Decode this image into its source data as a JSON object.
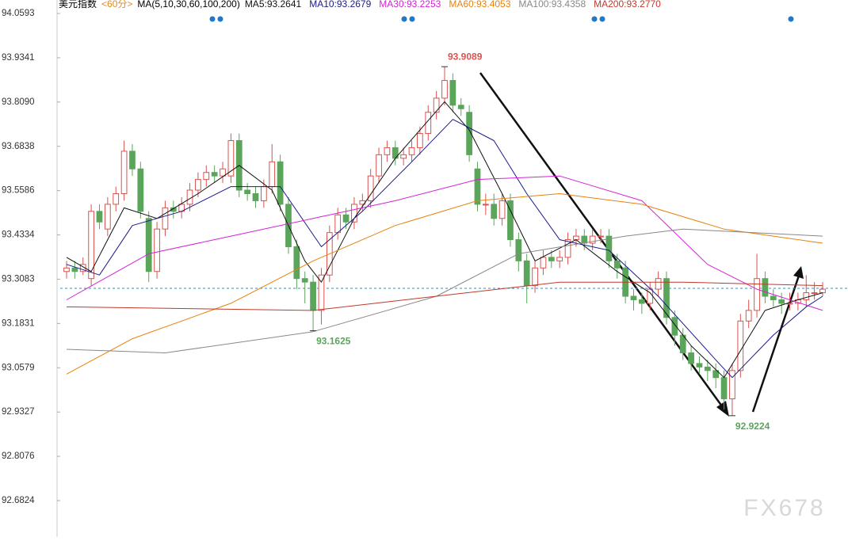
{
  "chart_data": {
    "type": "candlestick",
    "header": [
      "美元指数",
      "<60分>",
      "MA(5,10,30,60,100,200)"
    ],
    "header_colors": [
      "#000000",
      "#e08a1e",
      "#000000"
    ],
    "ylim": [
      92.5794,
      94.0974
    ],
    "yticks": [
      94.0593,
      93.9341,
      {
        "value": 93.809,
        "label": "93.8090"
      },
      93.6838,
      93.5586,
      93.4334,
      93.3083,
      93.1831,
      93.0579,
      92.9327,
      92.8076,
      92.6824
    ],
    "up_color": "#d9534f",
    "down_color": "#5ba55b",
    "open": [
      93.33,
      93.34,
      93.33,
      93.31,
      93.5,
      93.45,
      93.52,
      93.55,
      93.67,
      93.62,
      93.48,
      93.33,
      93.45,
      93.51,
      93.5,
      93.52,
      93.56,
      93.59,
      93.61,
      93.6,
      93.6,
      93.7,
      93.56,
      93.55,
      93.53,
      93.57,
      93.64,
      93.52,
      93.4,
      93.31,
      93.3,
      93.22,
      93.32,
      93.44,
      93.49,
      93.47,
      93.52,
      93.53,
      93.6,
      93.66,
      93.68,
      93.65,
      93.66,
      93.68,
      93.72,
      93.78,
      93.82,
      93.87,
      93.8,
      93.78,
      93.62,
      93.52,
      93.52,
      93.48,
      93.53,
      93.42,
      93.36,
      93.29,
      93.34,
      93.37,
      93.36,
      93.37,
      93.42,
      93.43,
      93.41,
      93.43,
      93.43,
      93.36,
      93.34,
      93.26,
      93.25,
      93.24,
      93.28,
      93.31,
      93.2,
      93.15,
      93.1,
      93.07,
      93.06,
      93.05,
      93.03,
      92.97,
      93.05,
      93.19,
      93.22,
      93.31,
      93.26,
      93.25,
      93.24,
      93.24,
      93.25,
      93.27,
      93.27
    ],
    "high": [
      93.36,
      93.36,
      93.37,
      93.52,
      93.52,
      93.54,
      93.57,
      93.7,
      93.69,
      93.64,
      93.5,
      93.47,
      93.53,
      93.53,
      93.54,
      93.58,
      93.61,
      93.63,
      93.63,
      93.64,
      93.72,
      93.72,
      93.58,
      93.57,
      93.59,
      93.69,
      93.66,
      93.54,
      93.42,
      93.33,
      93.32,
      93.34,
      93.46,
      93.51,
      93.51,
      93.54,
      93.55,
      93.62,
      93.68,
      93.7,
      93.7,
      93.68,
      93.7,
      93.74,
      93.8,
      93.84,
      93.9089,
      93.89,
      93.82,
      93.8,
      93.64,
      93.55,
      93.55,
      93.55,
      93.55,
      93.44,
      93.38,
      93.36,
      93.39,
      93.39,
      93.39,
      93.44,
      93.45,
      93.45,
      93.45,
      93.45,
      93.45,
      93.38,
      93.36,
      93.28,
      93.27,
      93.3,
      93.33,
      93.33,
      93.22,
      93.17,
      93.12,
      93.09,
      93.08,
      93.07,
      93.05,
      93.07,
      93.21,
      93.25,
      93.38,
      93.33,
      93.28,
      93.27,
      93.27,
      93.27,
      93.32,
      93.3,
      93.3
    ],
    "low": [
      93.31,
      93.31,
      93.32,
      93.29,
      93.45,
      93.43,
      93.5,
      93.53,
      93.6,
      93.48,
      93.3,
      93.31,
      93.43,
      93.48,
      93.48,
      93.5,
      93.54,
      93.57,
      93.58,
      93.58,
      93.58,
      93.54,
      93.53,
      93.51,
      93.51,
      93.55,
      93.5,
      93.38,
      93.28,
      93.24,
      93.1625,
      93.18,
      93.3,
      93.42,
      93.45,
      93.45,
      93.5,
      93.51,
      93.58,
      93.64,
      93.63,
      93.63,
      93.64,
      93.66,
      93.7,
      93.76,
      93.8,
      93.78,
      93.77,
      93.64,
      93.5,
      93.49,
      93.46,
      93.46,
      93.4,
      93.33,
      93.24,
      93.27,
      93.32,
      93.34,
      93.34,
      93.35,
      93.4,
      93.39,
      93.39,
      93.41,
      93.34,
      93.31,
      93.24,
      93.22,
      93.21,
      93.22,
      93.26,
      93.18,
      93.12,
      93.08,
      93.05,
      93.04,
      93.02,
      93.0,
      92.94,
      92.9224,
      93.03,
      93.17,
      93.2,
      93.24,
      93.23,
      93.21,
      93.22,
      93.22,
      93.23,
      93.25,
      93.26
    ],
    "close": [
      93.34,
      93.33,
      93.35,
      93.5,
      93.47,
      93.52,
      93.55,
      93.67,
      93.62,
      93.5,
      93.33,
      93.45,
      93.51,
      93.5,
      93.52,
      93.56,
      93.59,
      93.61,
      93.6,
      93.62,
      93.7,
      93.56,
      93.55,
      93.53,
      93.57,
      93.64,
      93.52,
      93.4,
      93.31,
      93.3,
      93.22,
      93.32,
      93.44,
      93.49,
      93.47,
      93.52,
      93.53,
      93.6,
      93.66,
      93.68,
      93.65,
      93.66,
      93.68,
      93.72,
      93.78,
      93.82,
      93.87,
      93.8,
      93.79,
      93.66,
      93.52,
      93.52,
      93.48,
      93.53,
      93.42,
      93.36,
      93.29,
      93.34,
      93.37,
      93.36,
      93.37,
      93.42,
      93.43,
      93.41,
      93.43,
      93.43,
      93.36,
      93.34,
      93.26,
      93.25,
      93.24,
      93.28,
      93.31,
      93.2,
      93.15,
      93.1,
      93.07,
      93.06,
      93.05,
      93.03,
      92.97,
      93.05,
      93.19,
      93.22,
      93.31,
      93.26,
      93.25,
      93.24,
      93.24,
      93.25,
      93.27,
      93.27,
      93.28
    ],
    "series": [
      {
        "name": "MA5:93.2641",
        "color": "#111111",
        "x": [
          0,
          3,
          7,
          11,
          16,
          21,
          25,
          29,
          31,
          35,
          40,
          46,
          49,
          53,
          57,
          62,
          67,
          71,
          76,
          80,
          85,
          89,
          92
        ],
        "values": [
          93.37,
          93.33,
          93.51,
          93.48,
          93.55,
          93.63,
          93.56,
          93.36,
          93.3,
          93.48,
          93.65,
          93.81,
          93.73,
          93.55,
          93.36,
          93.42,
          93.33,
          93.27,
          93.12,
          93.03,
          93.22,
          93.25,
          93.27
        ]
      },
      {
        "name": "MA10:93.2679",
        "color": "#1a1a8c",
        "x": [
          0,
          4,
          8,
          14,
          20,
          26,
          31,
          36,
          42,
          47,
          52,
          56,
          60,
          66,
          72,
          79,
          81,
          86,
          90,
          92
        ],
        "values": [
          93.35,
          93.32,
          93.46,
          93.5,
          93.57,
          93.57,
          93.4,
          93.5,
          93.64,
          93.76,
          93.7,
          93.55,
          93.42,
          93.39,
          93.26,
          93.08,
          93.03,
          93.15,
          93.23,
          93.26
        ]
      },
      {
        "name": "MA30:93.2253",
        "color": "#d422d4",
        "x": [
          0,
          10,
          20,
          30,
          40,
          50,
          60,
          70,
          78,
          84,
          92
        ],
        "values": [
          93.25,
          93.38,
          93.43,
          93.48,
          93.53,
          93.59,
          93.6,
          93.53,
          93.35,
          93.28,
          93.22
        ]
      },
      {
        "name": "MA60:93.4053",
        "color": "#e8820c",
        "x": [
          0,
          8,
          20,
          30,
          40,
          50,
          60,
          70,
          80,
          92
        ],
        "values": [
          93.04,
          93.14,
          93.24,
          93.36,
          93.46,
          93.53,
          93.55,
          93.52,
          93.45,
          93.41
        ]
      },
      {
        "name": "MA100:93.4358",
        "color": "#888888",
        "x": [
          0,
          12,
          30,
          45,
          55,
          68,
          75,
          92
        ],
        "values": [
          93.11,
          93.1,
          93.16,
          93.26,
          93.38,
          93.43,
          93.45,
          93.43
        ]
      },
      {
        "name": "MA200:93.2770",
        "color": "#c0392b",
        "x": [
          0,
          30,
          45,
          60,
          75,
          92
        ],
        "values": [
          93.23,
          93.22,
          93.26,
          93.3,
          93.3,
          93.29
        ]
      }
    ],
    "current_line": 93.2825,
    "annotations": [
      {
        "candle": 46,
        "value": 93.9089,
        "color": "#d9534f"
      },
      {
        "candle": 30,
        "value": 93.1625,
        "color": "#5ba55b"
      },
      {
        "candle": 81,
        "value": 92.9224,
        "color": "#5ba55b"
      }
    ],
    "watermark": "FX678"
  }
}
